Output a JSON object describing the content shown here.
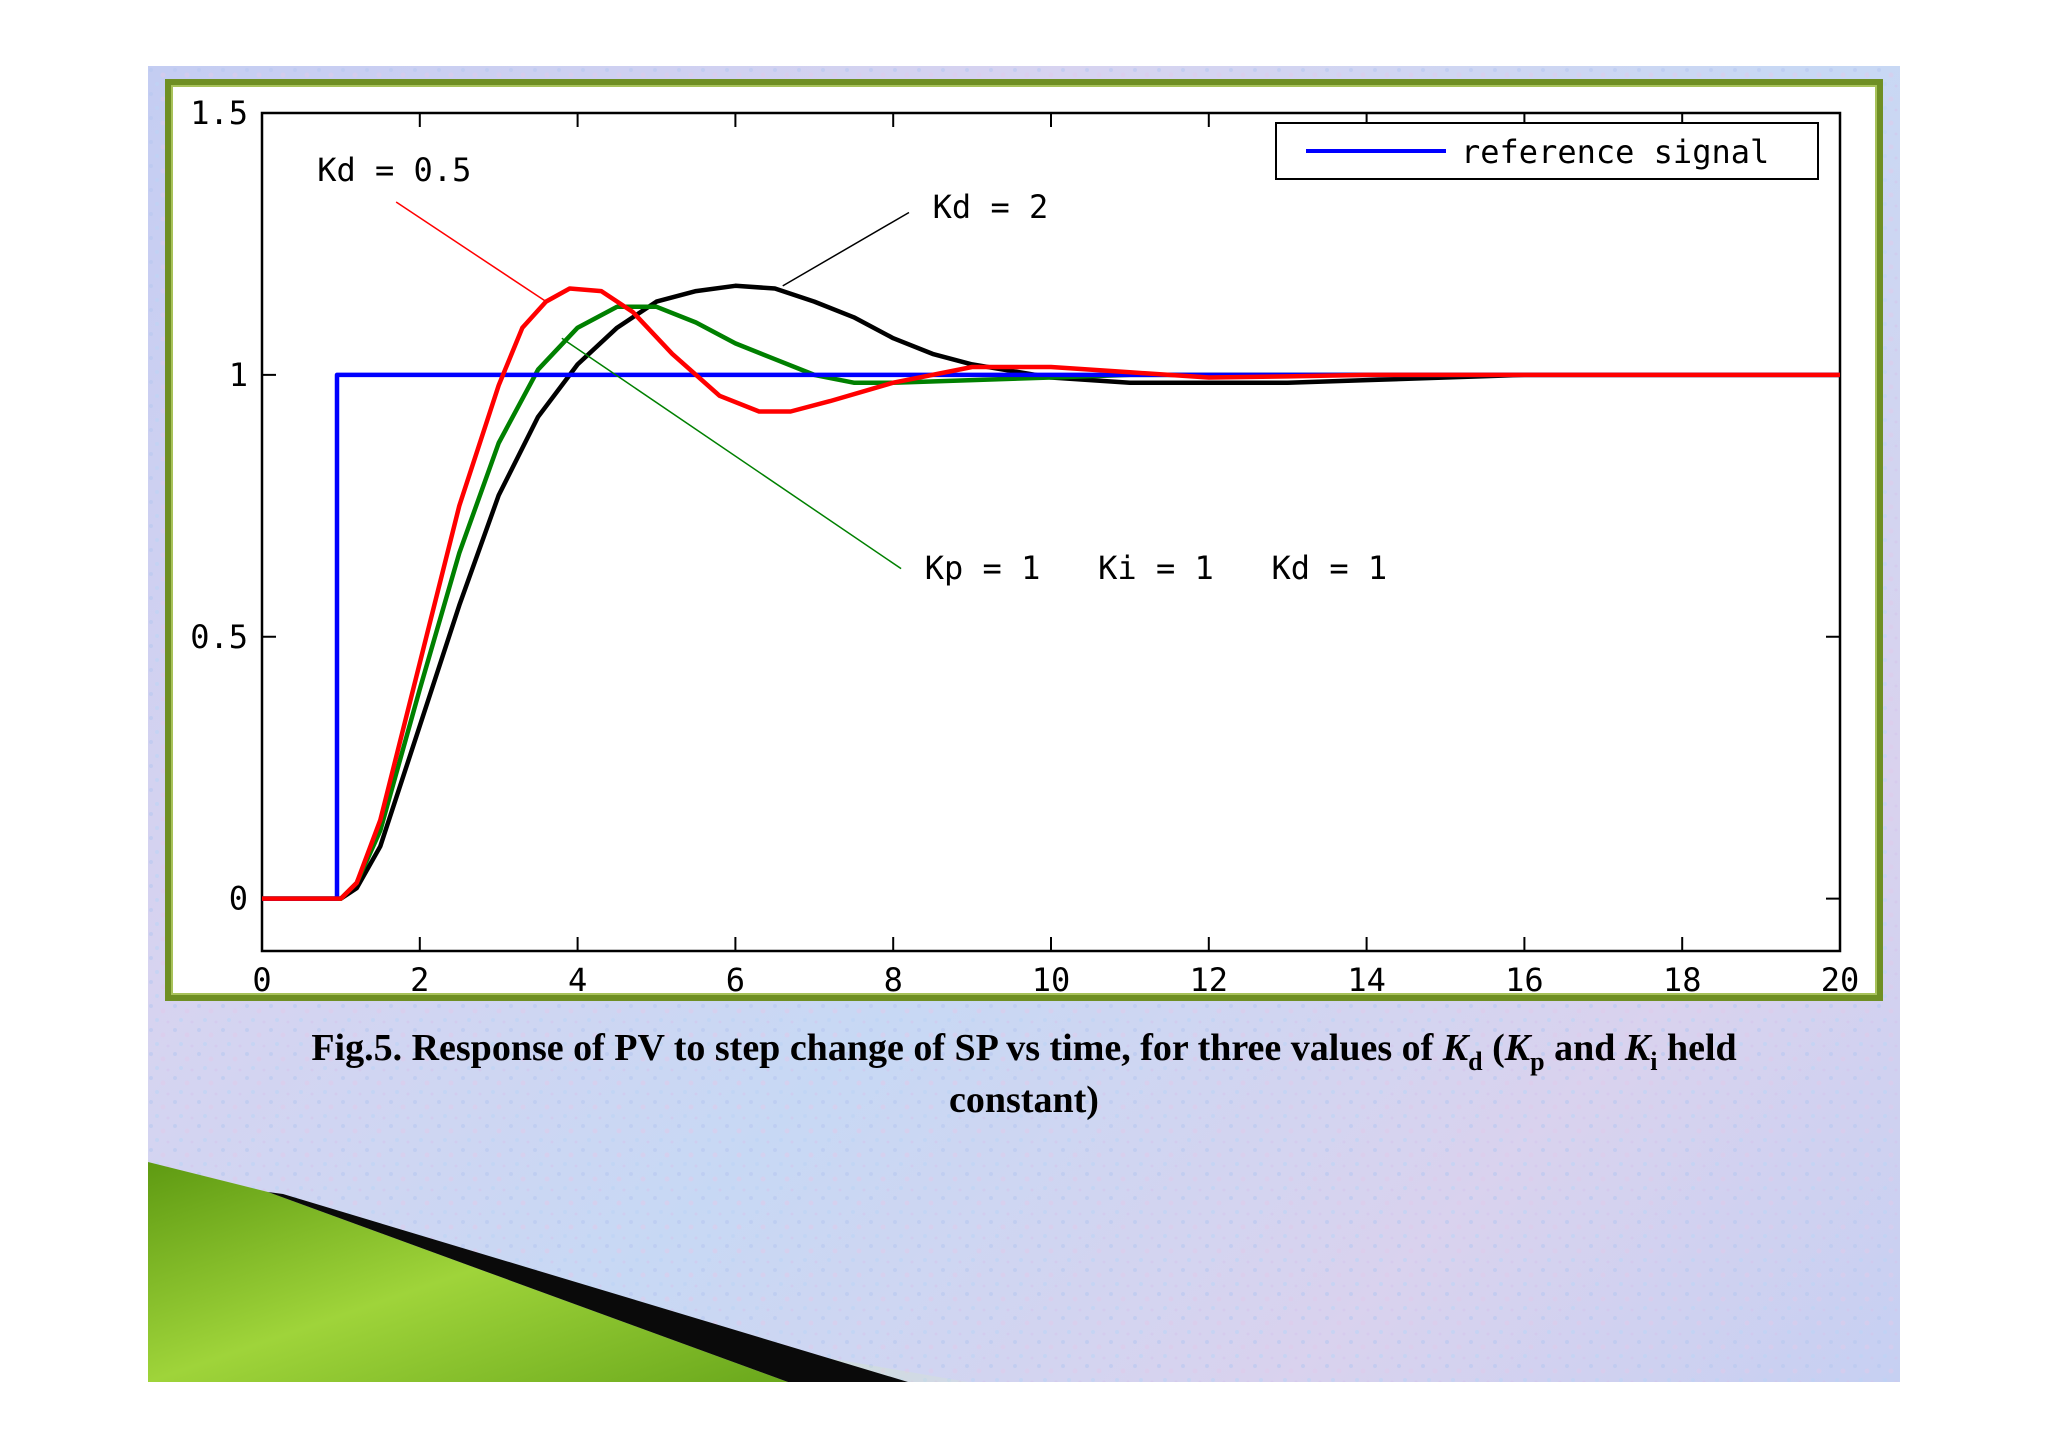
{
  "colors": {
    "reference": "#0000ff",
    "kd_05": "#ff0000",
    "kd_1": "#008000",
    "kd_2": "#000000",
    "frame": "#6f8f24"
  },
  "caption": {
    "part1": "Fig.5. Response of PV to step change of SP vs time, for three values of ",
    "k1": "K",
    "k1_sub": "d",
    "part2": " (",
    "k2": "K",
    "k2_sub": "p",
    "part3": " and ",
    "k3": "K",
    "k3_sub": "i",
    "part4": " held",
    "line2": "constant)"
  },
  "chart_data": {
    "type": "line",
    "xlim": [
      0,
      20
    ],
    "ylim": [
      -0.1,
      1.5
    ],
    "xticks": [
      "0",
      "2",
      "4",
      "6",
      "8",
      "10",
      "12",
      "14",
      "16",
      "18",
      "20"
    ],
    "yticks": [
      "0",
      "0.5",
      "1",
      "1.5"
    ],
    "xtick_values": [
      0,
      2,
      4,
      6,
      8,
      10,
      12,
      14,
      16,
      18,
      20
    ],
    "ytick_values": [
      0,
      0.5,
      1,
      1.5
    ],
    "legend": {
      "label": "reference signal",
      "position": "top-right"
    },
    "annotations": [
      {
        "text": "Kd = 0.5",
        "color": "#ff0000",
        "text_at": [
          0.7,
          1.37
        ],
        "from": [
          1.7,
          1.33
        ],
        "to": [
          3.6,
          1.14
        ]
      },
      {
        "text": "Kd = 2",
        "color": "#000000",
        "text_at": [
          8.5,
          1.3
        ],
        "from": [
          8.2,
          1.31
        ],
        "to": [
          6.6,
          1.17
        ]
      },
      {
        "text": "Kp = 1   Ki = 1   Kd = 1",
        "color": "#008000",
        "text_at": [
          8.4,
          0.61
        ],
        "from": [
          8.1,
          0.63
        ],
        "to": [
          3.8,
          1.07
        ]
      }
    ],
    "series": [
      {
        "name": "reference signal",
        "color": "#0000ff",
        "x": [
          0,
          0.95,
          0.95,
          20
        ],
        "y": [
          0,
          0,
          1,
          1
        ]
      },
      {
        "color": "#ff0000",
        "x": [
          0,
          1.0,
          1.2,
          1.5,
          2.0,
          2.5,
          3.0,
          3.3,
          3.6,
          3.9,
          4.3,
          4.7,
          5.2,
          5.8,
          6.3,
          6.7,
          7.2,
          8.0,
          9.0,
          10.0,
          11.0,
          12.0,
          13.0,
          14.0,
          16.0,
          20.0
        ],
        "y": [
          0,
          0,
          0.03,
          0.15,
          0.45,
          0.75,
          0.98,
          1.09,
          1.14,
          1.165,
          1.16,
          1.12,
          1.04,
          0.96,
          0.93,
          0.93,
          0.95,
          0.985,
          1.015,
          1.015,
          1.005,
          0.995,
          0.997,
          1.0,
          1.0,
          1.0
        ]
      },
      {
        "color": "#008000",
        "x": [
          0,
          1.0,
          1.2,
          1.5,
          2.0,
          2.5,
          3.0,
          3.5,
          4.0,
          4.5,
          5.0,
          5.5,
          6.0,
          6.5,
          7.0,
          7.5,
          8.0,
          9.0,
          10.0,
          11.0,
          12.0,
          14.0,
          16.0,
          20.0
        ],
        "y": [
          0,
          0,
          0.03,
          0.13,
          0.4,
          0.66,
          0.87,
          1.01,
          1.09,
          1.13,
          1.13,
          1.1,
          1.06,
          1.03,
          1.0,
          0.985,
          0.985,
          0.99,
          0.995,
          1.0,
          1.0,
          1.0,
          1.0,
          1.0
        ]
      },
      {
        "color": "#000000",
        "x": [
          0,
          1.0,
          1.2,
          1.5,
          2.0,
          2.5,
          3.0,
          3.5,
          4.0,
          4.5,
          5.0,
          5.5,
          6.0,
          6.5,
          7.0,
          7.5,
          8.0,
          8.5,
          9.0,
          10.0,
          11.0,
          12.0,
          13.0,
          14.0,
          15.0,
          16.0,
          20.0
        ],
        "y": [
          0,
          0,
          0.02,
          0.1,
          0.33,
          0.56,
          0.77,
          0.92,
          1.02,
          1.09,
          1.14,
          1.16,
          1.17,
          1.165,
          1.14,
          1.11,
          1.07,
          1.04,
          1.02,
          0.995,
          0.985,
          0.985,
          0.985,
          0.99,
          0.995,
          1.0,
          1.0
        ]
      }
    ]
  }
}
